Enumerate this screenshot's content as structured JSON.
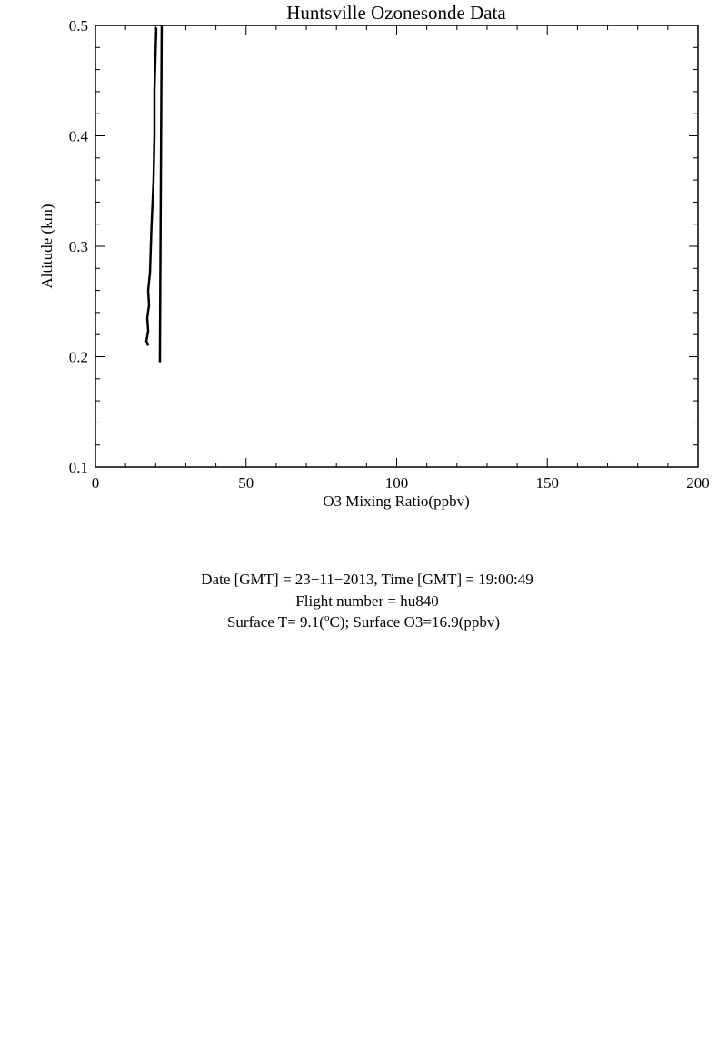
{
  "chart_data": {
    "type": "line",
    "title": "Huntsville Ozonesonde Data",
    "xlabel": "O3 Mixing Ratio(ppbv)",
    "ylabel": "Altitude (km)",
    "xlim": [
      0,
      200
    ],
    "ylim": [
      0.1,
      0.5
    ],
    "xticks": [
      0,
      50,
      100,
      150,
      200
    ],
    "yticks": [
      0.1,
      0.2,
      0.3,
      0.4,
      0.5
    ],
    "xminorticks": [
      10,
      20,
      30,
      40,
      60,
      70,
      80,
      90,
      110,
      120,
      130,
      140,
      160,
      170,
      180,
      190
    ],
    "yminorticks": [
      0.12,
      0.14,
      0.16,
      0.18,
      0.22,
      0.24,
      0.26,
      0.28,
      0.32,
      0.34,
      0.36,
      0.38,
      0.42,
      0.44,
      0.46,
      0.48
    ],
    "series": [
      {
        "color": "#000000",
        "x": [
          17.5,
          16.9,
          17.5,
          17.2,
          17.8,
          17.5,
          18.1,
          18.6,
          19.3,
          19.6,
          19.6,
          20.2
        ],
        "values": [
          0.21,
          0.214,
          0.223,
          0.235,
          0.247,
          0.26,
          0.276,
          0.317,
          0.36,
          0.4,
          0.441,
          0.498
        ]
      },
      {
        "color": "#000000",
        "x": [
          21.4,
          21.5,
          21.7,
          21.9,
          22.0
        ],
        "values": [
          0.195,
          0.25,
          0.35,
          0.45,
          0.5
        ]
      }
    ],
    "annotations": [
      "Date [GMT] = 23−11−2013,  Time [GMT] = 19:00:49",
      "Flight number = hu840",
      [
        "Surface T= 9.1(",
        "o",
        "C); Surface O3=16.9(ppbv)"
      ]
    ]
  }
}
